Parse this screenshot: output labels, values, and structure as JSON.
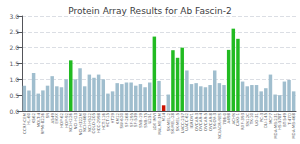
{
  "chart_data": {
    "type": "bar",
    "title": "Protein Array Results for Ab Fascin-2",
    "categories": [
      "CCRF-CEM",
      "HL-60",
      "K562",
      "MOLT-4",
      "RPMI-8226",
      "SR",
      "A549",
      "EKVX",
      "HOP-62",
      "HOP-92",
      "NCI-H226",
      "NCI-H23",
      "NCI-H322M",
      "NCI-H460",
      "NCI-H522",
      "COLO-205",
      "HCC-2998",
      "HCT-116",
      "HCT-15",
      "HT29",
      "KM12",
      "SW-620",
      "SF-268",
      "SF-295",
      "SF-539",
      "SNB-19",
      "SNB-75",
      "U251",
      "LOX IMVI",
      "MALME-3M",
      "M14",
      "SK-MEL-2",
      "SK-MEL-28",
      "SK-MEL-5",
      "UACC-257",
      "UACC-62",
      "IGROV1",
      "OVCAR-3",
      "OVCAR-4",
      "OVCAR-5",
      "OVCAR-8",
      "SK-OV-3",
      "NCI/ADR-RES",
      "786-0",
      "A498",
      "ACHN",
      "CAKI-1",
      "RXF-393",
      "SN12C",
      "TK-10",
      "UO-31",
      "PC-3",
      "DU-145",
      "MCF7",
      "MDA-MB-231",
      "HS-578T",
      "BT-549",
      "T-47D",
      "MDA-MB-468"
    ],
    "values": [
      0.8,
      0.65,
      1.2,
      0.55,
      0.65,
      0.8,
      1.1,
      0.78,
      0.75,
      1.0,
      1.6,
      1.0,
      1.35,
      0.78,
      1.15,
      1.05,
      1.15,
      1.0,
      0.55,
      0.62,
      0.88,
      0.85,
      0.9,
      0.9,
      0.8,
      0.85,
      0.75,
      0.9,
      2.35,
      0.95,
      0.18,
      0.52,
      1.92,
      1.68,
      2.0,
      1.28,
      0.85,
      0.88,
      0.78,
      0.75,
      0.82,
      1.28,
      0.88,
      0.82,
      1.93,
      2.6,
      2.28,
      0.93,
      0.78,
      0.82,
      0.82,
      0.62,
      0.72,
      1.15,
      0.52,
      0.5,
      0.93,
      0.98,
      0.62
    ],
    "colors": [
      "#a0bece",
      "#a0bece",
      "#a0bece",
      "#a0bece",
      "#a0bece",
      "#a0bece",
      "#a0bece",
      "#a0bece",
      "#a0bece",
      "#a0bece",
      "#22bb22",
      "#a0bece",
      "#a0bece",
      "#a0bece",
      "#a0bece",
      "#a0bece",
      "#a0bece",
      "#a0bece",
      "#a0bece",
      "#a0bece",
      "#a0bece",
      "#a0bece",
      "#a0bece",
      "#a0bece",
      "#a0bece",
      "#a0bece",
      "#a0bece",
      "#a0bece",
      "#22bb22",
      "#a0bece",
      "#cc1100",
      "#a0bece",
      "#22bb22",
      "#22bb22",
      "#22bb22",
      "#a0bece",
      "#a0bece",
      "#a0bece",
      "#a0bece",
      "#a0bece",
      "#a0bece",
      "#a0bece",
      "#a0bece",
      "#a0bece",
      "#22bb22",
      "#22bb22",
      "#22bb22",
      "#a0bece",
      "#a0bece",
      "#a0bece",
      "#a0bece",
      "#a0bece",
      "#a0bece",
      "#a0bece",
      "#a0bece",
      "#a0bece",
      "#a0bece",
      "#a0bece",
      "#a0bece"
    ],
    "ylim": [
      0,
      3.0
    ],
    "yticks": [
      {
        "value": 0.0,
        "label": "0.0"
      },
      0.5,
      {
        "value": 1.0,
        "label": "1.0"
      },
      1.5,
      {
        "value": 2.0,
        "label": "2.0"
      },
      2.5,
      {
        "value": 3.0,
        "label": "3.0"
      }
    ],
    "grid": true
  }
}
